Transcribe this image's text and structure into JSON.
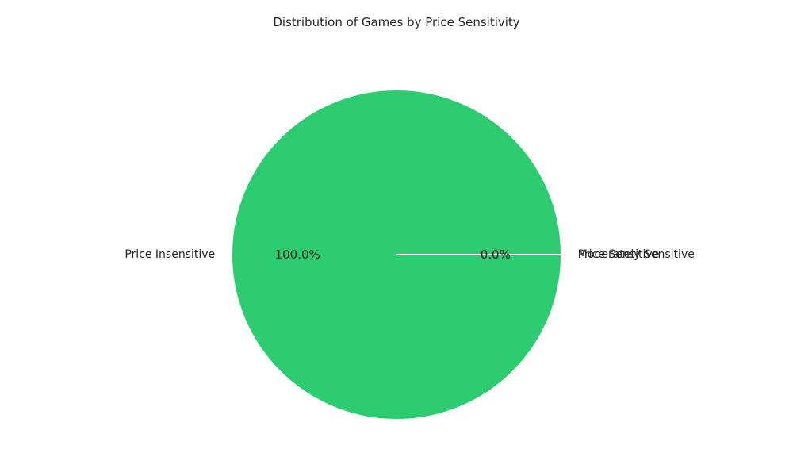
{
  "chart_data": {
    "type": "pie",
    "title": "Distribution of Games by Price Sensitivity",
    "slices": [
      {
        "label": "Price Insensitive",
        "value": 100.0,
        "percent_label": "100.0%",
        "color": "#2ecc71"
      },
      {
        "label": "Price Sensitive",
        "value": 0.0,
        "percent_label": "0.0%",
        "color": "#e74c3c"
      },
      {
        "label": "Moderately Sensitive",
        "value": 0.0,
        "percent_label": "0.0%",
        "color": "#f1c40f"
      }
    ],
    "start_angle_deg": 0,
    "direction": "counterclockwise",
    "wedge_edge_color": "#ffffff",
    "legend": "none"
  }
}
